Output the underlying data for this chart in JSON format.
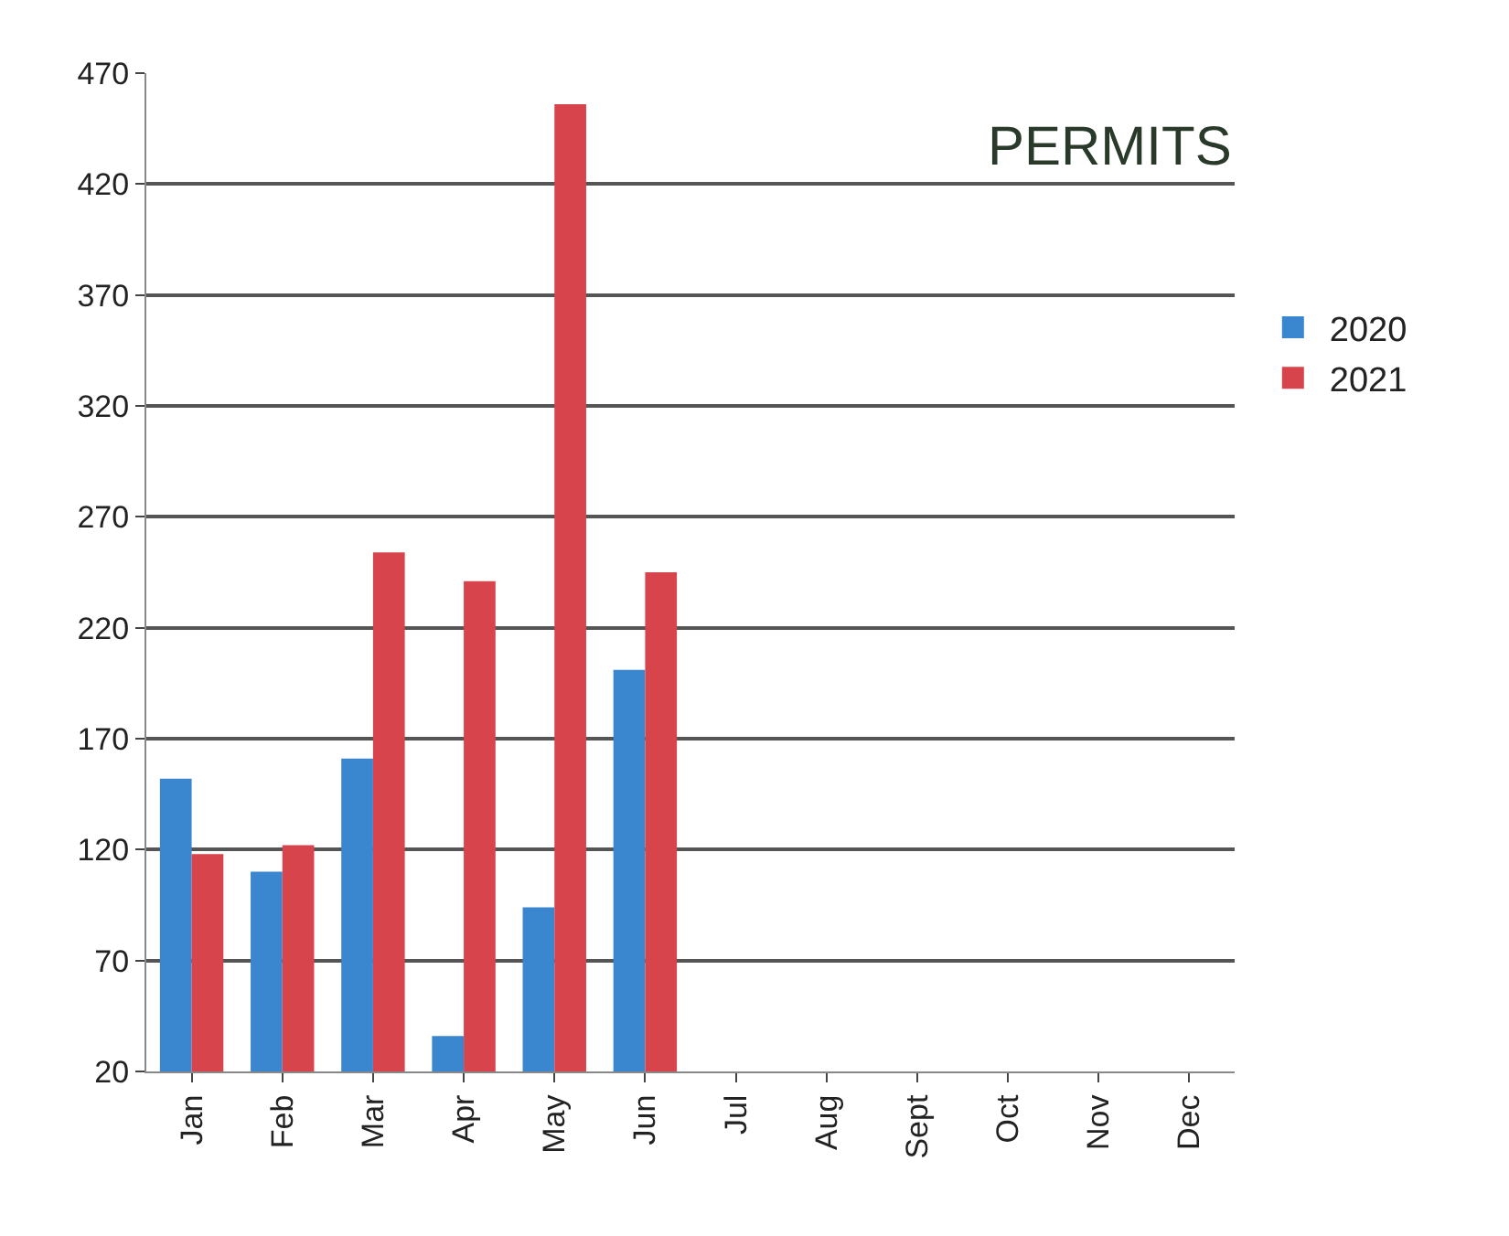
{
  "chart_data": {
    "type": "bar",
    "title": "PERMITS",
    "categories": [
      "Jan",
      "Feb",
      "Mar",
      "Apr",
      "May",
      "Jun",
      "Jul",
      "Aug",
      "Sept",
      "Oct",
      "Nov",
      "Dec"
    ],
    "series": [
      {
        "name": "2020",
        "color": "#3a86cf",
        "values": [
          152,
          110,
          161,
          36,
          94,
          201,
          null,
          null,
          null,
          null,
          null,
          null
        ]
      },
      {
        "name": "2021",
        "color": "#d8444c",
        "values": [
          118,
          122,
          254,
          241,
          456,
          245,
          null,
          null,
          null,
          null,
          null,
          null
        ]
      }
    ],
    "ylim": [
      20,
      470
    ],
    "yticks": [
      20,
      70,
      120,
      170,
      220,
      270,
      320,
      370,
      420,
      470
    ],
    "grid": "y",
    "legend": "right"
  }
}
